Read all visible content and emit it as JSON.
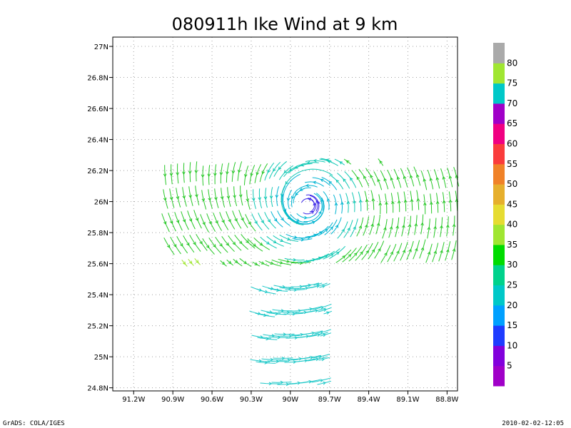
{
  "chart_data": {
    "type": "streamline",
    "title": "080911h Ike Wind at 9 km",
    "xlabel": "",
    "ylabel": "",
    "x_ticks": [
      "91.2W",
      "90.9W",
      "90.6W",
      "90.3W",
      "90W",
      "89.7W",
      "89.4W",
      "89.1W",
      "88.8W"
    ],
    "x_tick_values": [
      -91.2,
      -90.9,
      -90.6,
      -90.3,
      -90.0,
      -89.7,
      -89.4,
      -89.1,
      -88.8
    ],
    "y_ticks": [
      "24.8N",
      "25N",
      "25.2N",
      "25.4N",
      "25.6N",
      "25.8N",
      "26N",
      "26.2N",
      "26.4N",
      "26.6N",
      "26.8N",
      "27N"
    ],
    "y_tick_values": [
      24.8,
      25.0,
      25.2,
      25.4,
      25.6,
      25.8,
      26.0,
      26.2,
      26.4,
      26.6,
      26.8,
      27.0
    ],
    "xlim": [
      -91.36,
      -88.72
    ],
    "ylim": [
      24.78,
      27.06
    ],
    "grid": true,
    "vortex_center": {
      "lon": -89.87,
      "lat": 25.97
    },
    "data_regions": [
      {
        "name": "east-west swath",
        "lon": [
          -91.0,
          -88.7
        ],
        "lat": [
          25.58,
          26.28
        ]
      },
      {
        "name": "south swath",
        "lon": [
          -90.33,
          -89.68
        ],
        "lat": [
          24.82,
          25.48
        ]
      }
    ],
    "colorbar": {
      "labels": [
        "5",
        "10",
        "15",
        "20",
        "25",
        "30",
        "35",
        "40",
        "45",
        "50",
        "55",
        "60",
        "65",
        "70",
        "75",
        "80"
      ],
      "colors": [
        "#a000c8",
        "#8200dc",
        "#1e3cff",
        "#00a0ff",
        "#00c8c8",
        "#00d28c",
        "#00dc00",
        "#a0e632",
        "#e6dc32",
        "#e6af2d",
        "#f08228",
        "#fa3c3c",
        "#f00082",
        "#a000c8",
        "#00c8c8",
        "#a0e632",
        "#aaaaaa"
      ]
    }
  },
  "footer": {
    "left": "GrADS: COLA/IGES",
    "right": "2010-02-02-12:05"
  }
}
